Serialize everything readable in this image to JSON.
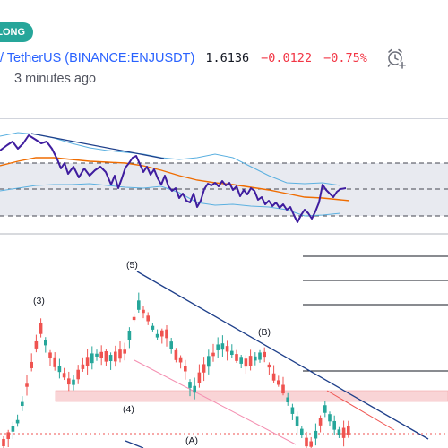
{
  "badge": {
    "label": "LONG",
    "color": "#26a69a"
  },
  "symbol": {
    "name": "/ TetherUS",
    "exchange_open": "(",
    "exchange": "BINANCE:ENJUSDT",
    "exchange_close": ")",
    "price": "1.6136",
    "change": "−0.0122",
    "change_pct": "−0.75%",
    "change_color": "#f23645"
  },
  "published": "3 minutes ago",
  "icons": {
    "alert": "alarm-clock-plus-icon"
  },
  "colors": {
    "oscillator_line": "#3f1d9f",
    "moving_average": "#ef6c00",
    "bands": "#5bb0e0",
    "trendline": "#1e3f8a",
    "zone": "#f8c9cc",
    "candle_up": "#26a69a",
    "candle_down": "#ef5350"
  },
  "waves": [
    "(3)",
    "(5)",
    "(4)",
    "(B)",
    "(A)"
  ]
}
